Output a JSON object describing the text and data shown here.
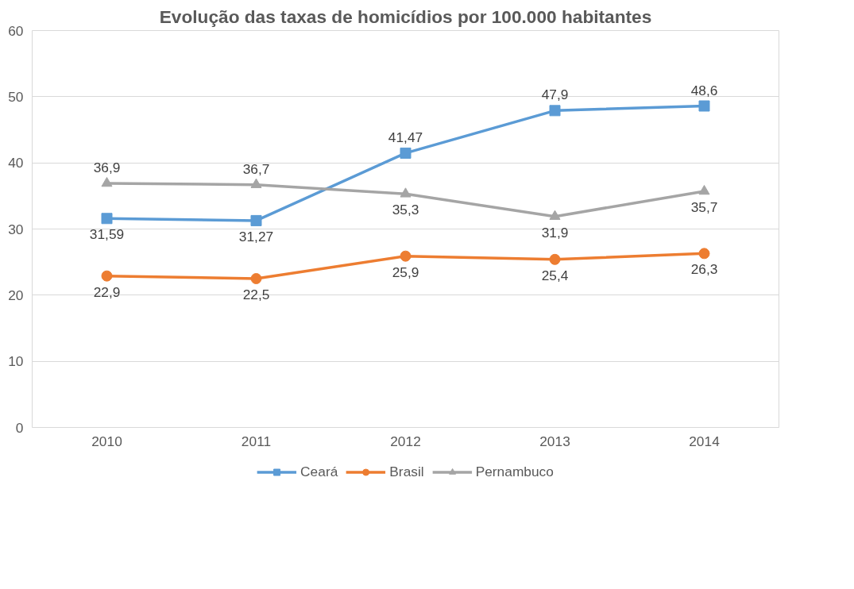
{
  "chart_data": {
    "type": "line",
    "title": "Evolução das taxas de homicídios por 100.000 habitantes",
    "categories": [
      "2010",
      "2011",
      "2012",
      "2013",
      "2014"
    ],
    "series": [
      {
        "name": "Ceará",
        "color": "#5b9bd5",
        "marker": "square",
        "values": [
          31.59,
          31.27,
          41.47,
          47.9,
          48.6
        ],
        "value_labels": [
          "31,59",
          "31,27",
          "41,47",
          "47,9",
          "48,6"
        ]
      },
      {
        "name": "Brasil",
        "color": "#ed7d31",
        "marker": "circle",
        "values": [
          22.9,
          22.5,
          25.9,
          25.4,
          26.3
        ],
        "value_labels": [
          "22,9",
          "22,5",
          "25,9",
          "25,4",
          "26,3"
        ]
      },
      {
        "name": "Pernambuco",
        "color": "#a5a5a5",
        "marker": "triangle",
        "values": [
          36.9,
          36.7,
          35.3,
          31.9,
          35.7
        ],
        "value_labels": [
          "36,9",
          "36,7",
          "35,3",
          "31,9",
          "35,7"
        ]
      }
    ],
    "ylim": [
      0,
      60
    ],
    "yticks": [
      0,
      10,
      20,
      30,
      40,
      50,
      60
    ],
    "grid": "y",
    "legend": "bottom",
    "line_style": "solid"
  }
}
